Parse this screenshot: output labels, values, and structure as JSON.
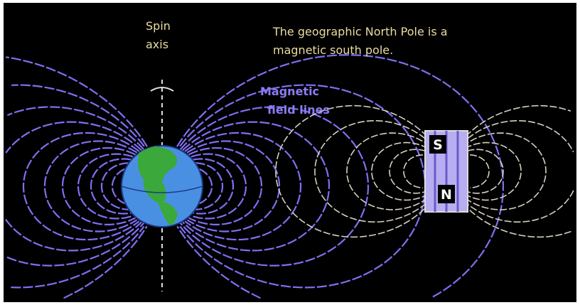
{
  "labels": {
    "spin_axis": [
      "Spin",
      "axis"
    ],
    "note": [
      "The geographic North Pole is a",
      "magnetic south pole."
    ],
    "field_lines": [
      "Magnetic",
      "field lines"
    ]
  },
  "magnet": {
    "south": "S",
    "north": "N"
  }
}
